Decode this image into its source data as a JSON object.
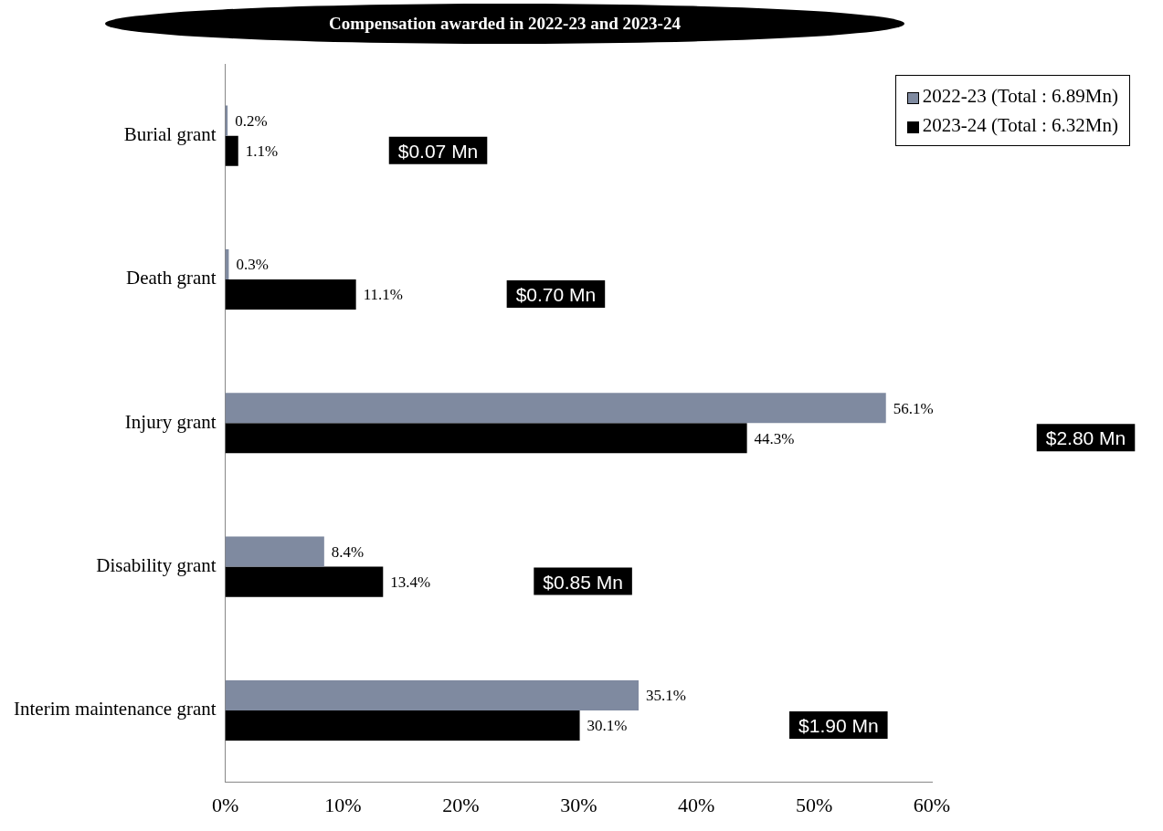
{
  "chart_data": {
    "type": "bar",
    "orientation": "horizontal",
    "title": "Compensation awarded in 2022-23 and 2023-24",
    "categories": [
      "Burial grant",
      "Death grant",
      "Injury grant",
      "Disability grant",
      "Interim maintenance grant"
    ],
    "series": [
      {
        "name": "2022-23 (Total : 6.89Mn)",
        "color": "#7f8aa0",
        "values": [
          0.2,
          0.3,
          56.1,
          8.4,
          35.1
        ],
        "value_labels": [
          "0.2%",
          "0.3%",
          "56.1%",
          "8.4%",
          "35.1%"
        ]
      },
      {
        "name": "2023-24 (Total : 6.32Mn)",
        "color": "#000000",
        "values": [
          1.1,
          11.1,
          44.3,
          13.4,
          30.1
        ],
        "value_labels": [
          "1.1%",
          "11.1%",
          "44.3%",
          "13.4%",
          "30.1%"
        ]
      }
    ],
    "xlim": [
      0,
      60
    ],
    "xticks": [
      {
        "value": 0,
        "label": "0%"
      },
      {
        "value": 10,
        "label": "10%"
      },
      {
        "value": 20,
        "label": "20%"
      },
      {
        "value": 30,
        "label": "30%"
      },
      {
        "value": 40,
        "label": "40%"
      },
      {
        "value": 50,
        "label": "50%"
      },
      {
        "value": 60,
        "label": "60%"
      }
    ],
    "annotations": [
      "$0.07 Mn",
      "$0.70 Mn",
      "$2.80 Mn",
      "$0.85 Mn",
      "$1.90 Mn"
    ],
    "legend": "top right",
    "grid": false
  }
}
